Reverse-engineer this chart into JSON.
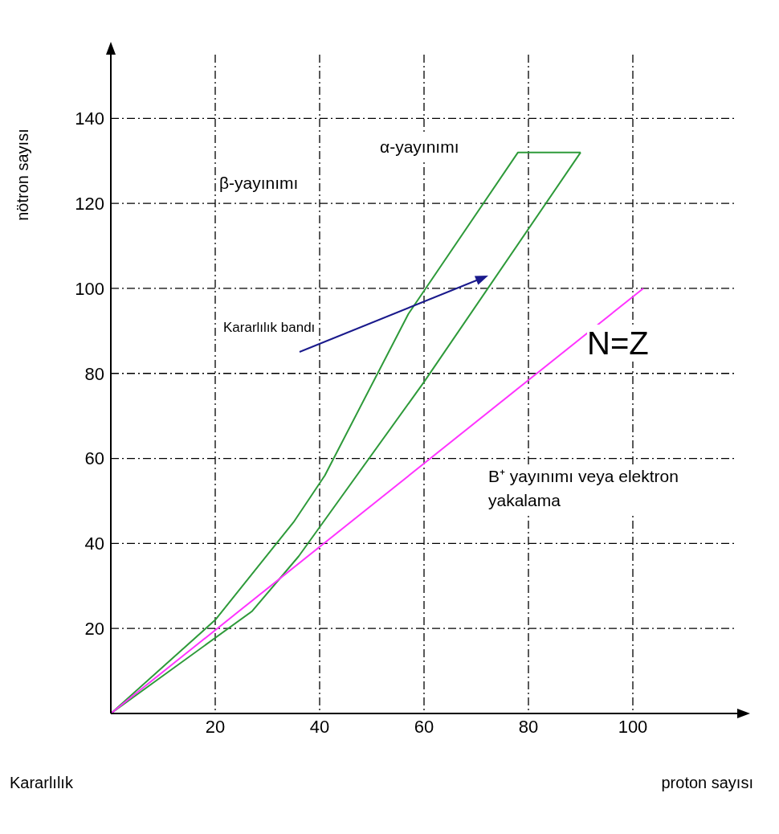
{
  "chart_data": {
    "type": "line",
    "xlabel": "proton sayısı",
    "ylabel": "nötron sayısı",
    "xlim": [
      0,
      120
    ],
    "ylim": [
      0,
      155
    ],
    "xticks": [
      20,
      40,
      60,
      80,
      100
    ],
    "yticks": [
      20,
      40,
      60,
      80,
      100,
      120,
      140
    ],
    "grid": true,
    "series": [
      {
        "color": "#2e9a3a",
        "x": [
          0,
          20,
          35,
          41,
          57,
          78,
          90
        ],
        "values": [
          0,
          22,
          45,
          56,
          94,
          132,
          132
        ]
      },
      {
        "color": "#2e9a3a",
        "x": [
          0,
          27,
          36,
          60,
          90
        ],
        "values": [
          0,
          24,
          37,
          78,
          132
        ]
      },
      {
        "name": "N=Z",
        "color": "#ff33ff",
        "x": [
          0,
          102
        ],
        "values": [
          0,
          100
        ]
      }
    ],
    "annotations": [
      "α-yayınımı",
      "β-yayınımı",
      "B⁺ yayınımı  veya elektron yakalama",
      "Kararlılık bandı",
      "Kararlılık"
    ]
  }
}
